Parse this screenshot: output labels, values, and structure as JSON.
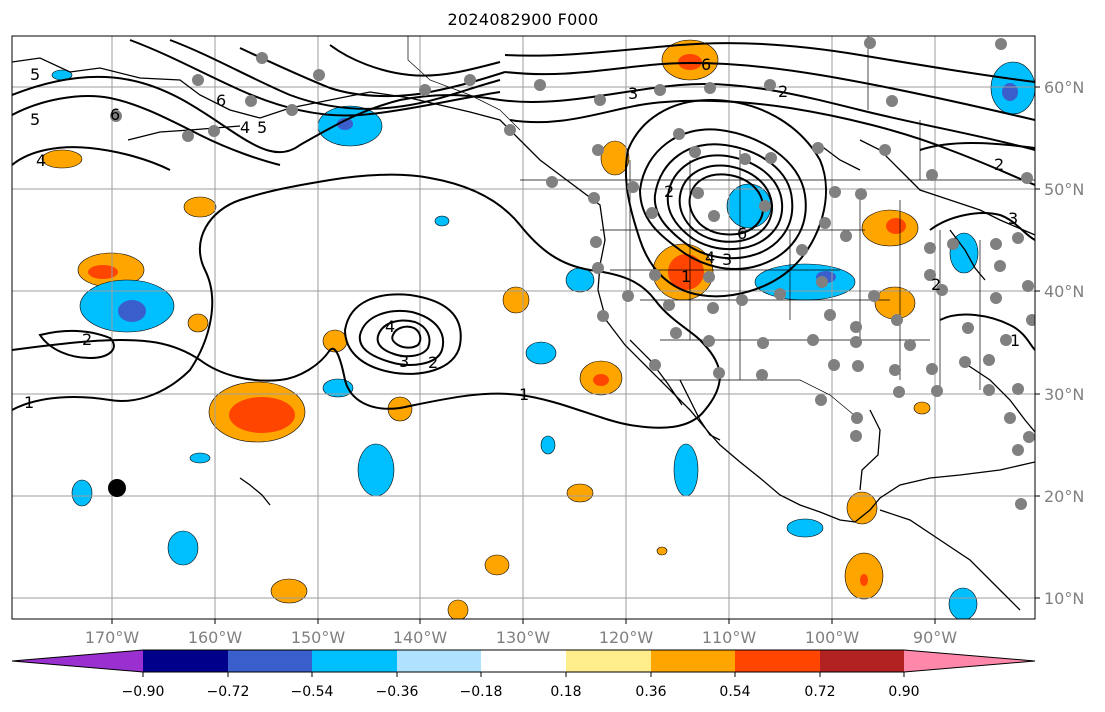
{
  "title": "2024082900 F000",
  "colors": {
    "scale": [
      "#9b30d0",
      "#00008b",
      "#3a5fcd",
      "#00bfff",
      "#b0e2ff",
      "#ffffff",
      "#ffec8b",
      "#ffa500",
      "#ff4500",
      "#b22222",
      "#ff88aa"
    ],
    "contour": "#000000",
    "grid": "#9e9e9e",
    "station": "#808080",
    "coast": "#000000"
  },
  "axes": {
    "lon_labels": [
      "170°W",
      "160°W",
      "150°W",
      "140°W",
      "130°W",
      "120°W",
      "110°W",
      "100°W",
      "90°W"
    ],
    "lat_labels": [
      "60°N",
      "50°N",
      "40°N",
      "30°N",
      "20°N",
      "10°N"
    ]
  },
  "colorbar": {
    "ticks": [
      "−0.90",
      "−0.72",
      "−0.54",
      "−0.36",
      "−0.18",
      "0.18",
      "0.36",
      "0.54",
      "0.72",
      "0.90"
    ]
  },
  "contour_labels": [
    "6",
    "3",
    "2",
    "5",
    "6",
    "4",
    "5",
    "4",
    "2",
    "5",
    "6",
    "2",
    "3",
    "6",
    "4",
    "2",
    "4",
    "3",
    "2",
    "1",
    "1",
    "2",
    "1",
    "3",
    "1"
  ],
  "icons": {
    "station": "grey-dot-icon",
    "marker": "black-dot-icon"
  }
}
